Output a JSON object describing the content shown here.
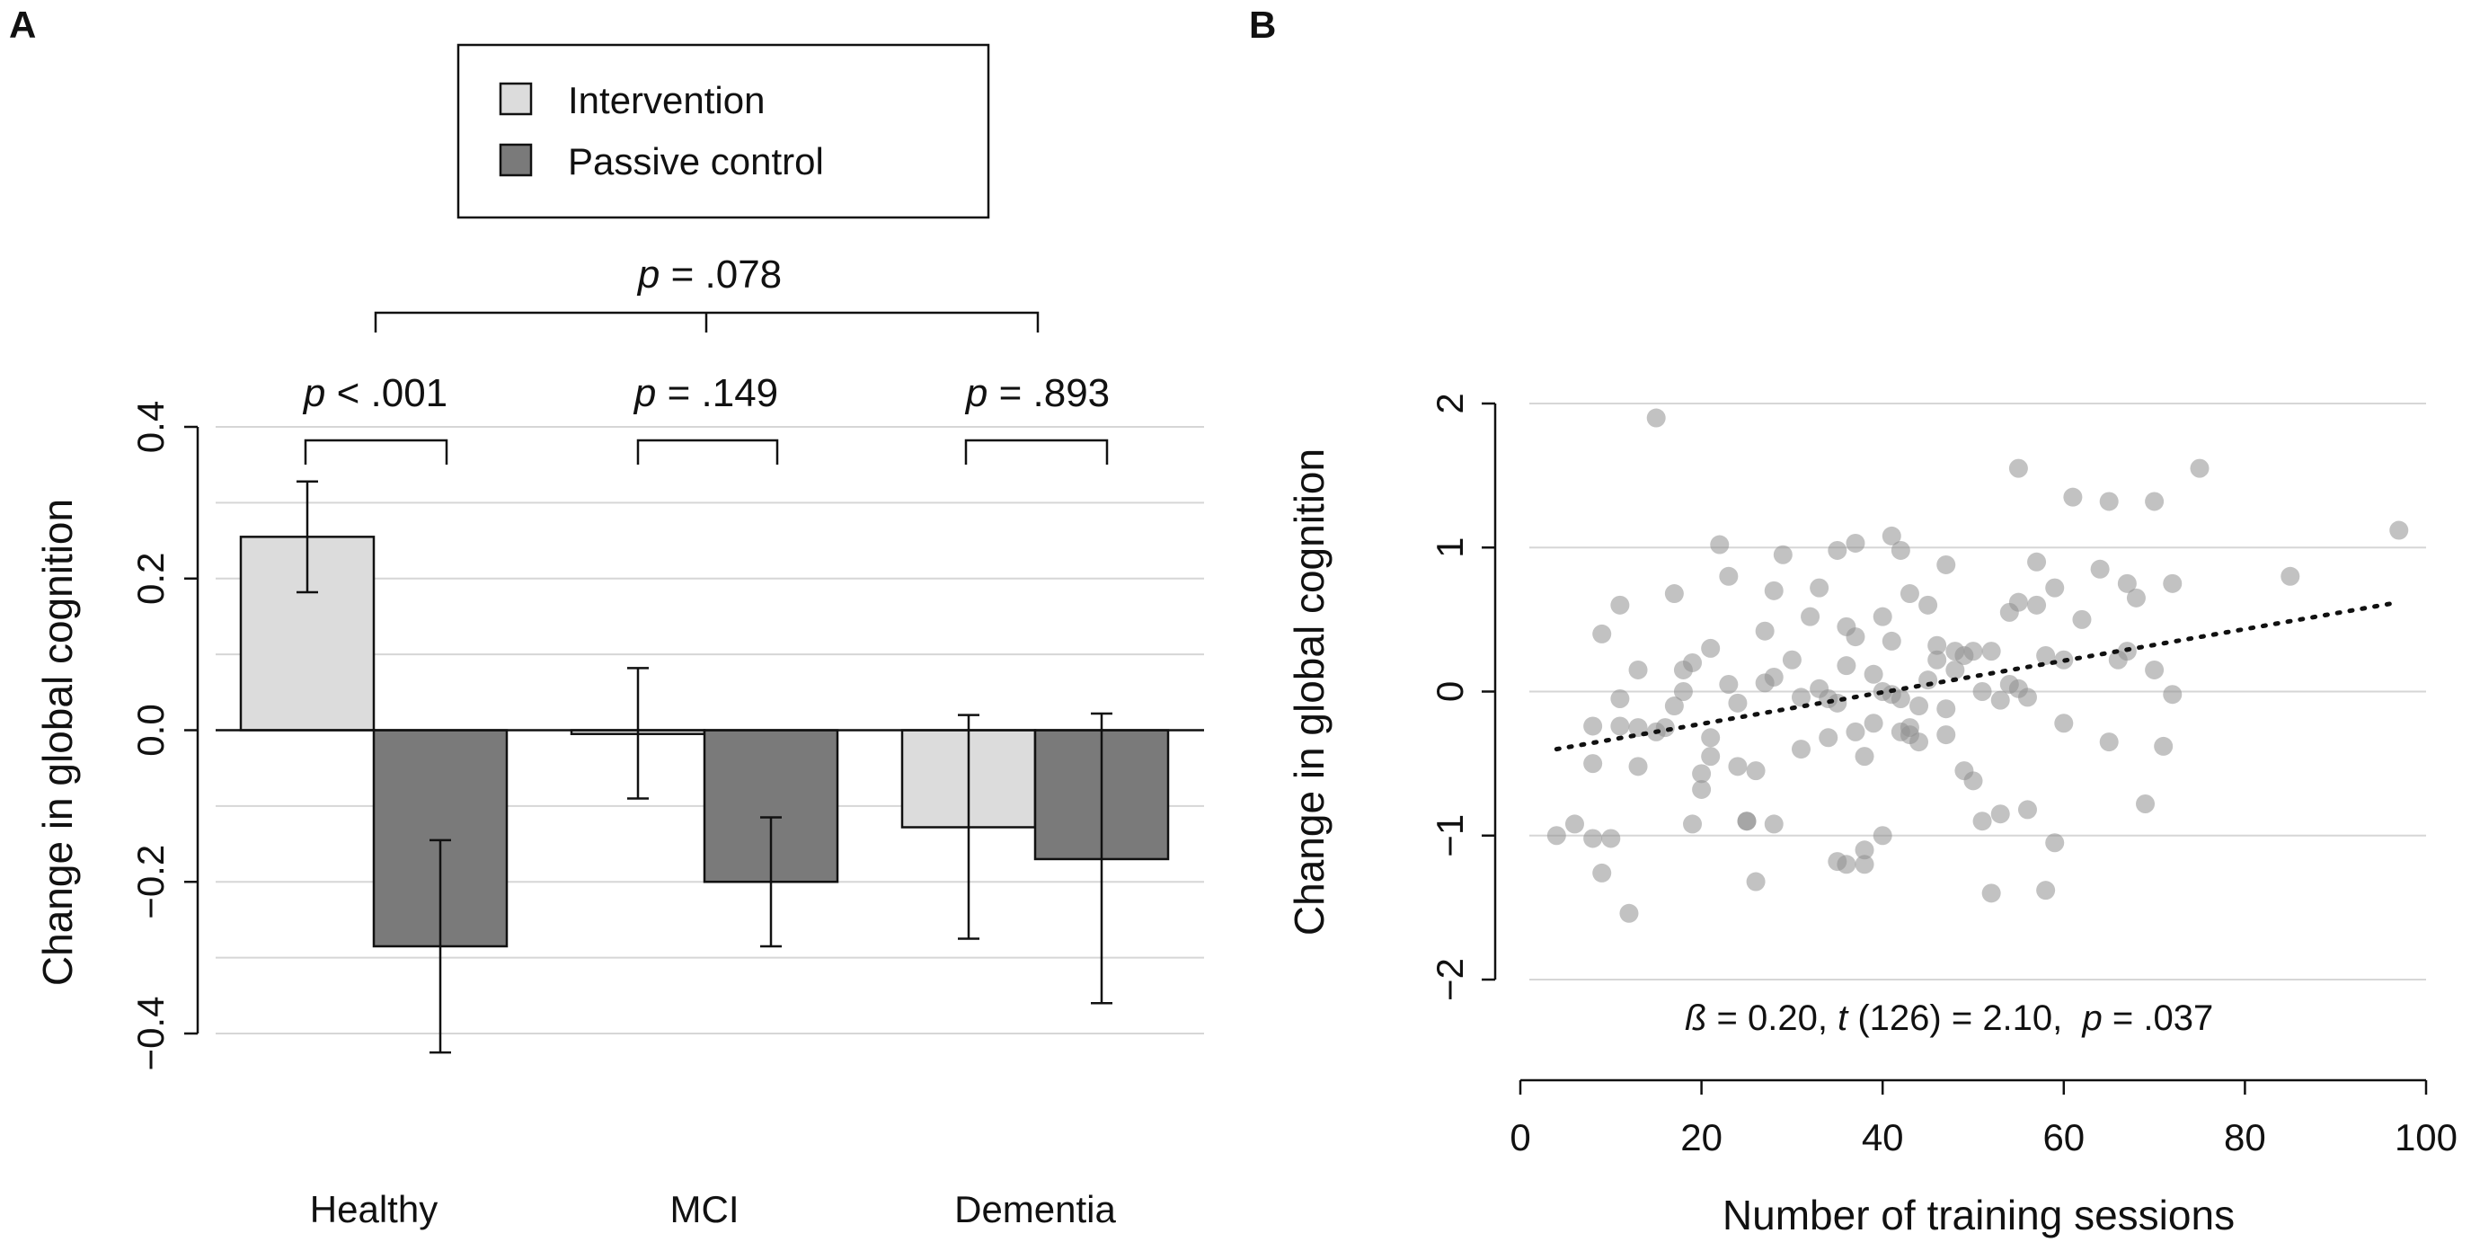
{
  "chart_data": [
    {
      "panel": "A",
      "type": "bar",
      "ylabel": "Change in global cognition",
      "ylim": [
        -0.4,
        0.4
      ],
      "yticks": [
        -0.4,
        -0.2,
        0.0,
        0.2,
        0.4
      ],
      "ytick_labels": [
        "−0.4",
        "−0.2",
        "0.0",
        "0.2",
        "0.4"
      ],
      "categories": [
        "Healthy",
        "MCI",
        "Dementia"
      ],
      "legend": {
        "position": "top-center",
        "entries": [
          "Intervention",
          "Passive control"
        ]
      },
      "colors": {
        "Intervention": "#dcdcdc",
        "Passive control": "#7a7a7a"
      },
      "series": [
        {
          "name": "Intervention",
          "values": [
            0.255,
            -0.005,
            -0.128
          ],
          "err_low": [
            0.182,
            -0.09,
            -0.275
          ],
          "err_high": [
            0.328,
            0.082,
            0.02
          ]
        },
        {
          "name": "Passive control",
          "values": [
            -0.285,
            -0.2,
            -0.17
          ],
          "err_low": [
            -0.425,
            -0.285,
            -0.36
          ],
          "err_high": [
            -0.145,
            -0.115,
            0.022
          ]
        }
      ],
      "annotations": [
        {
          "id": "healthy",
          "p": "p",
          "op": " < ",
          "value": ".001"
        },
        {
          "id": "mci",
          "p": "p",
          "op": " = ",
          "value": ".149"
        },
        {
          "id": "dementia",
          "p": "p",
          "op": " = ",
          "value": ".893"
        },
        {
          "id": "overall",
          "p": "p",
          "op": " = ",
          "value": ".078"
        }
      ]
    },
    {
      "panel": "B",
      "type": "scatter",
      "xlabel": "Number of training sessions",
      "ylabel": "Change in global cognition",
      "xlim": [
        0,
        100
      ],
      "ylim": [
        -2,
        2
      ],
      "xticks": [
        0,
        20,
        40,
        60,
        80,
        100
      ],
      "yticks": [
        -2,
        -1,
        0,
        1,
        2
      ],
      "ytick_labels": [
        "−2",
        "−1",
        "0",
        "1",
        "2"
      ],
      "fit_line": {
        "x": [
          4,
          97
        ],
        "y": [
          -0.4,
          0.62
        ]
      },
      "annotation": {
        "beta": "ß",
        "beta_val": " = 0.20, ",
        "t": "t",
        "t_val": " (126) = 2.10,  ",
        "p": "p",
        "p_val": " = .037"
      },
      "points": [
        [
          4,
          -1.0
        ],
        [
          6,
          -0.92
        ],
        [
          8,
          -1.02
        ],
        [
          8,
          -0.5
        ],
        [
          8,
          -0.24
        ],
        [
          9,
          0.4
        ],
        [
          9,
          -1.26
        ],
        [
          10,
          -1.02
        ],
        [
          11,
          0.6
        ],
        [
          11,
          -0.05
        ],
        [
          11,
          -0.24
        ],
        [
          12,
          -1.54
        ],
        [
          13,
          -0.52
        ],
        [
          13,
          -0.25
        ],
        [
          13,
          0.15
        ],
        [
          15,
          -0.28
        ],
        [
          15,
          1.9
        ],
        [
          16,
          -0.25
        ],
        [
          17,
          -0.1
        ],
        [
          17,
          0.68
        ],
        [
          18,
          0.15
        ],
        [
          18,
          0.0
        ],
        [
          19,
          0.2
        ],
        [
          19,
          -0.92
        ],
        [
          20,
          -0.68
        ],
        [
          20,
          -0.57
        ],
        [
          21,
          -0.45
        ],
        [
          21,
          0.3
        ],
        [
          21,
          -0.32
        ],
        [
          22,
          1.02
        ],
        [
          23,
          0.05
        ],
        [
          23,
          0.8
        ],
        [
          24,
          -0.52
        ],
        [
          24,
          -0.08
        ],
        [
          25,
          -0.9
        ],
        [
          25,
          -0.9
        ],
        [
          26,
          -1.32
        ],
        [
          26,
          -0.55
        ],
        [
          27,
          0.06
        ],
        [
          27,
          0.42
        ],
        [
          28,
          0.7
        ],
        [
          28,
          0.1
        ],
        [
          28,
          -0.92
        ],
        [
          29,
          0.95
        ],
        [
          30,
          0.22
        ],
        [
          31,
          -0.04
        ],
        [
          31,
          -0.4
        ],
        [
          32,
          0.52
        ],
        [
          33,
          0.72
        ],
        [
          33,
          0.02
        ],
        [
          34,
          -0.32
        ],
        [
          34,
          -0.05
        ],
        [
          35,
          -0.08
        ],
        [
          35,
          0.98
        ],
        [
          35,
          -1.18
        ],
        [
          36,
          0.45
        ],
        [
          36,
          0.18
        ],
        [
          36,
          -1.2
        ],
        [
          37,
          1.03
        ],
        [
          37,
          -0.28
        ],
        [
          37,
          0.38
        ],
        [
          38,
          -0.45
        ],
        [
          38,
          -1.1
        ],
        [
          38,
          -1.2
        ],
        [
          39,
          0.12
        ],
        [
          39,
          -0.22
        ],
        [
          40,
          -1.0
        ],
        [
          40,
          0.52
        ],
        [
          40,
          0.0
        ],
        [
          41,
          -0.02
        ],
        [
          41,
          0.35
        ],
        [
          41,
          1.08
        ],
        [
          42,
          -0.28
        ],
        [
          42,
          -0.05
        ],
        [
          42,
          0.98
        ],
        [
          43,
          -0.3
        ],
        [
          43,
          -0.25
        ],
        [
          43,
          0.68
        ],
        [
          44,
          -0.1
        ],
        [
          44,
          -0.35
        ],
        [
          45,
          0.08
        ],
        [
          45,
          0.6
        ],
        [
          46,
          0.32
        ],
        [
          46,
          0.22
        ],
        [
          47,
          -0.12
        ],
        [
          47,
          0.88
        ],
        [
          47,
          -0.3
        ],
        [
          48,
          0.15
        ],
        [
          48,
          0.28
        ],
        [
          49,
          -0.55
        ],
        [
          49,
          0.25
        ],
        [
          50,
          -0.62
        ],
        [
          50,
          0.28
        ],
        [
          51,
          -0.9
        ],
        [
          51,
          0.0
        ],
        [
          52,
          0.28
        ],
        [
          52,
          -1.4
        ],
        [
          53,
          -0.06
        ],
        [
          53,
          -0.85
        ],
        [
          54,
          0.05
        ],
        [
          54,
          0.55
        ],
        [
          55,
          1.55
        ],
        [
          55,
          0.62
        ],
        [
          55,
          0.02
        ],
        [
          56,
          -0.04
        ],
        [
          56,
          -0.82
        ],
        [
          57,
          0.9
        ],
        [
          57,
          0.6
        ],
        [
          58,
          0.25
        ],
        [
          58,
          -1.38
        ],
        [
          59,
          0.72
        ],
        [
          59,
          -1.05
        ],
        [
          60,
          -0.22
        ],
        [
          60,
          0.22
        ],
        [
          61,
          1.35
        ],
        [
          62,
          0.5
        ],
        [
          64,
          0.85
        ],
        [
          65,
          1.32
        ],
        [
          65,
          -0.35
        ],
        [
          66,
          0.22
        ],
        [
          67,
          0.75
        ],
        [
          67,
          0.28
        ],
        [
          68,
          0.65
        ],
        [
          69,
          -0.78
        ],
        [
          70,
          1.32
        ],
        [
          70,
          0.15
        ],
        [
          71,
          -0.38
        ],
        [
          72,
          0.75
        ],
        [
          72,
          -0.02
        ],
        [
          75,
          1.55
        ],
        [
          85,
          0.8
        ],
        [
          97,
          1.12
        ]
      ]
    }
  ]
}
